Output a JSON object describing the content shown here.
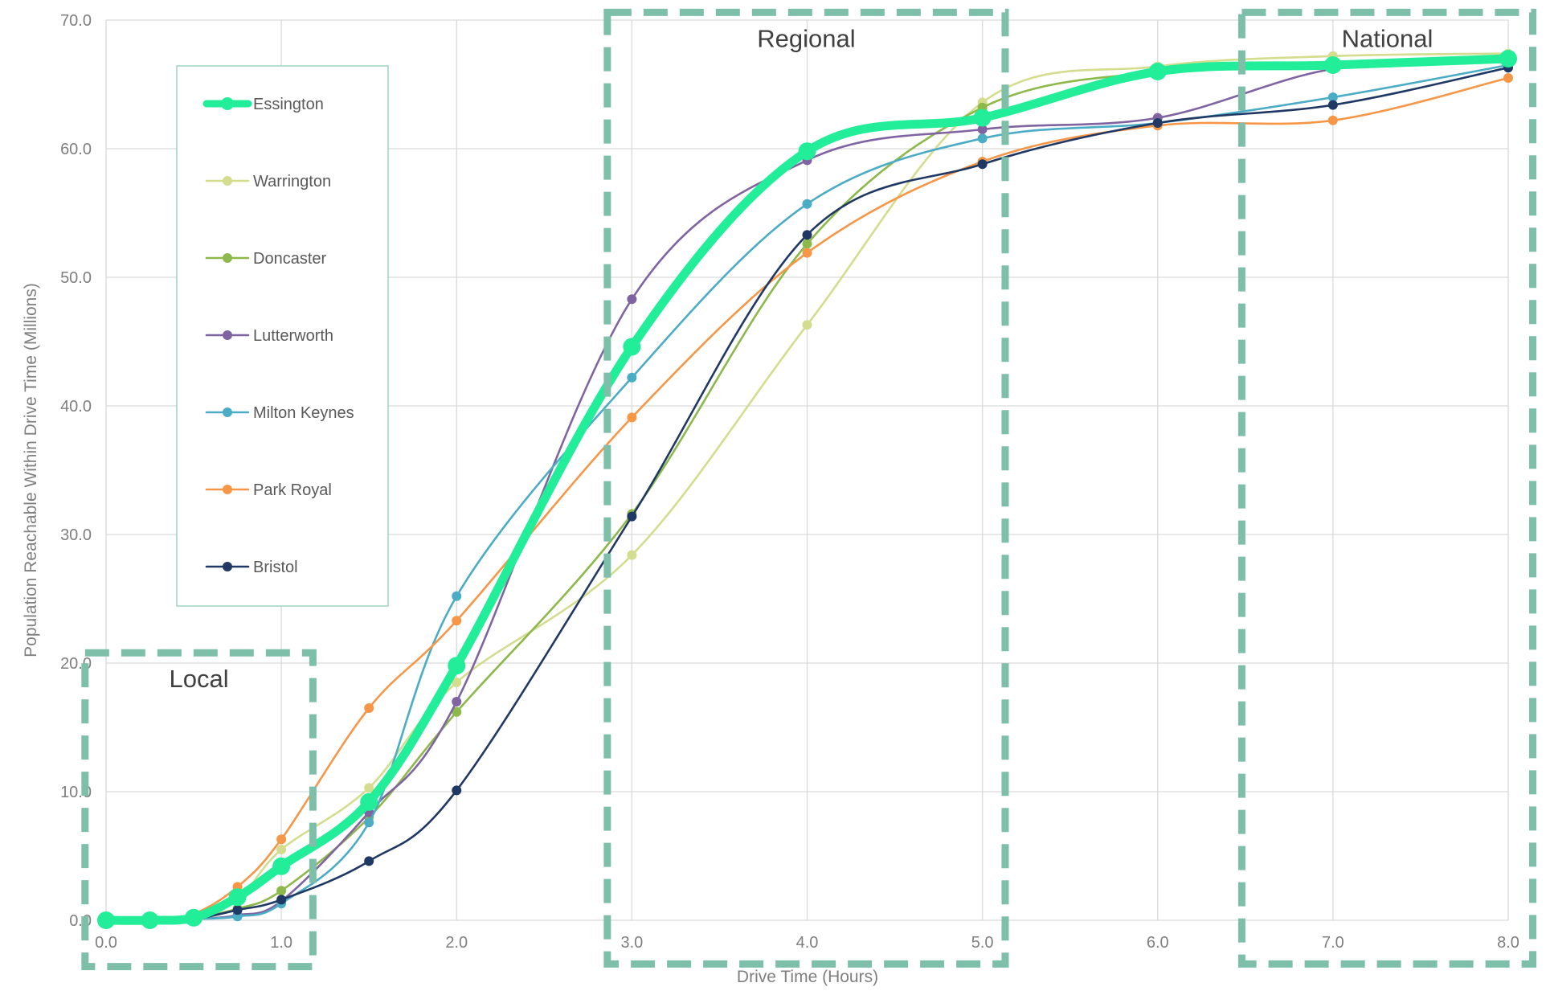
{
  "chart_data": {
    "type": "line",
    "title": "",
    "xlabel": "Drive Time (Hours)",
    "ylabel": "Population Reachable Within Drive Time (Millions)",
    "xlim": [
      0,
      8
    ],
    "ylim": [
      0,
      70
    ],
    "grid": true,
    "x_ticks": [
      "0.0",
      "1.0",
      "2.0",
      "3.0",
      "4.0",
      "5.0",
      "6.0",
      "7.0",
      "8.0"
    ],
    "y_ticks": [
      "0.0",
      "10.0",
      "20.0",
      "30.0",
      "40.0",
      "50.0",
      "60.0",
      "70.0"
    ],
    "legend_position": "left",
    "x": [
      0,
      0.25,
      0.5,
      0.75,
      1,
      1.5,
      2,
      3,
      4,
      5,
      6,
      7,
      8
    ],
    "series": [
      {
        "name": "Essington",
        "color": "#22ee99",
        "emphasis": true,
        "values": [
          0,
          0,
          0.2,
          1.8,
          4.2,
          9.2,
          19.8,
          44.6,
          59.8,
          62.4,
          66.0,
          66.5,
          67.0
        ]
      },
      {
        "name": "Warrington",
        "color": "#d4dc8e",
        "values": [
          0,
          0,
          0.3,
          1.6,
          5.5,
          10.3,
          18.5,
          28.4,
          46.3,
          63.6,
          66.4,
          67.2,
          67.4
        ]
      },
      {
        "name": "Doncaster",
        "color": "#8db84a",
        "values": [
          0,
          0,
          0.2,
          0.9,
          2.3,
          8.0,
          16.2,
          31.6,
          52.6,
          63.2,
          66.0,
          66.7,
          67.2
        ]
      },
      {
        "name": "Lutterworth",
        "color": "#8064a2",
        "values": [
          0,
          0,
          0.1,
          0.4,
          1.5,
          8.4,
          17.0,
          48.3,
          59.1,
          61.5,
          62.4,
          66.2,
          66.8
        ]
      },
      {
        "name": "Milton Keynes",
        "color": "#4bacc6",
        "values": [
          0,
          0,
          0.1,
          0.3,
          1.3,
          7.6,
          25.2,
          42.2,
          55.7,
          60.8,
          62.0,
          64.0,
          66.5
        ]
      },
      {
        "name": "Park Royal",
        "color": "#f79646",
        "values": [
          0,
          0,
          0.5,
          2.6,
          6.3,
          16.5,
          23.3,
          39.1,
          51.9,
          59.0,
          61.8,
          62.2,
          65.5
        ]
      },
      {
        "name": "Bristol",
        "color": "#1f3864",
        "values": [
          0,
          0,
          0.1,
          0.8,
          1.6,
          4.6,
          10.1,
          31.4,
          53.3,
          58.8,
          62.0,
          63.4,
          66.3
        ]
      }
    ],
    "zones": [
      {
        "label": "Local",
        "x_from": -0.12,
        "x_to": 1.18,
        "y_from": -3.6,
        "y_to": 20.8
      },
      {
        "label": "Regional",
        "x_from": 2.86,
        "x_to": 5.13,
        "y_from": -3.4,
        "y_to": 70.6
      },
      {
        "label": "National",
        "x_from": 6.48,
        "x_to": 8.14,
        "y_from": -3.4,
        "y_to": 70.6
      }
    ],
    "zone_color": "#7ebfa9"
  }
}
